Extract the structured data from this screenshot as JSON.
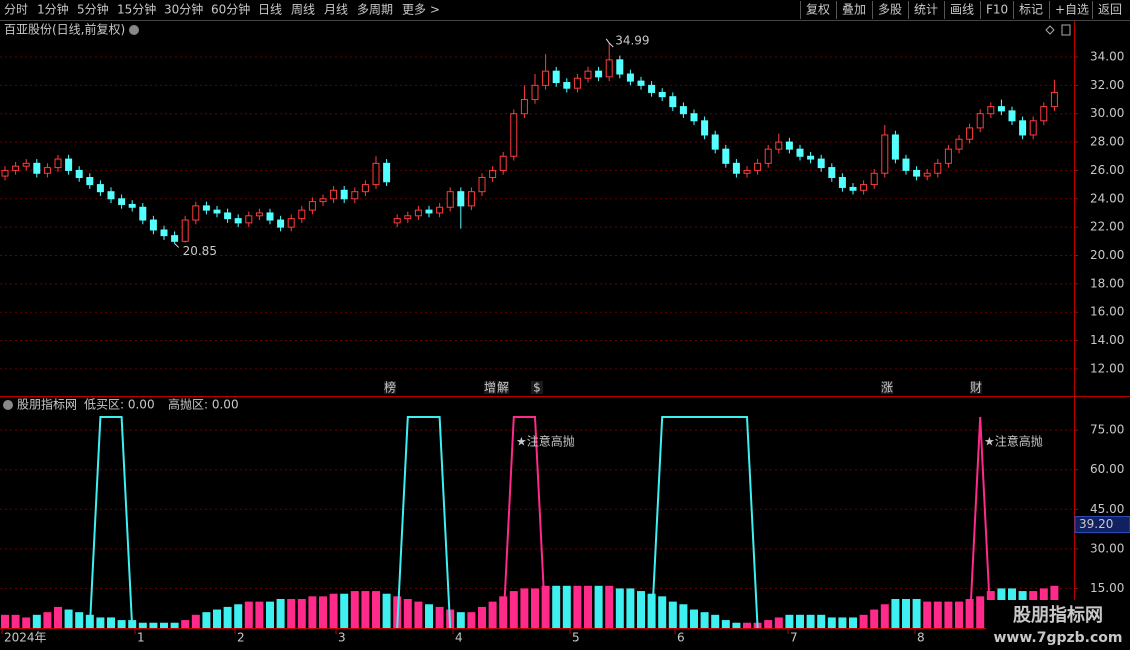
{
  "toolbar": {
    "left": [
      "分时",
      "1分钟",
      "5分钟",
      "15分钟",
      "30分钟",
      "60分钟",
      "日线",
      "周线",
      "月线",
      "多周期",
      "更多 >"
    ],
    "active": 6,
    "right": [
      "复权",
      "叠加",
      "多股",
      "统计",
      "画线",
      "F10",
      "标记",
      "+自选",
      "返回"
    ]
  },
  "chart_data": [
    {
      "type": "candlestick",
      "title": "百亚股份(日线,前复权)",
      "up_color": "#ff3c3c",
      "down_color": "#54ffff",
      "open": [
        25.6,
        26.0,
        26.3,
        26.5,
        25.8,
        26.2,
        26.8,
        26.0,
        25.5,
        25.0,
        24.5,
        24.0,
        23.6,
        23.4,
        22.5,
        21.8,
        21.4,
        21.0,
        22.5,
        23.5,
        23.2,
        23.0,
        22.6,
        22.3,
        22.8,
        23.0,
        22.5,
        22.0,
        22.6,
        23.2,
        23.8,
        24.0,
        24.6,
        24.0,
        24.5,
        25.0,
        26.5,
        22.3,
        22.6,
        22.8,
        23.2,
        23.0,
        23.4,
        24.5,
        23.5,
        24.5,
        25.5,
        26.0,
        27.0,
        30.0,
        31.0,
        32.0,
        33.0,
        32.2,
        31.8,
        32.5,
        33.0,
        32.6,
        33.8,
        32.8,
        32.3,
        32.0,
        31.5,
        31.2,
        30.5,
        30.0,
        29.5,
        28.5,
        27.5,
        26.5,
        25.8,
        26.0,
        26.5,
        27.5,
        28.0,
        27.5,
        27.0,
        26.8,
        26.2,
        25.5,
        24.8,
        24.6,
        25.0,
        25.8,
        28.5,
        26.8,
        26.0,
        25.6,
        25.8,
        26.5,
        27.5,
        28.2,
        29.0,
        30.0,
        30.5,
        30.2,
        29.5,
        28.5,
        29.5,
        30.5
      ],
      "high": [
        26.3,
        26.6,
        26.8,
        26.8,
        26.5,
        27.1,
        27.1,
        26.3,
        25.8,
        25.3,
        24.8,
        24.3,
        23.9,
        23.7,
        22.8,
        22.1,
        21.7,
        22.8,
        23.8,
        23.8,
        23.5,
        23.3,
        22.9,
        23.1,
        23.3,
        23.3,
        22.8,
        22.9,
        23.5,
        24.1,
        24.3,
        24.9,
        24.9,
        24.8,
        25.3,
        27.0,
        26.8,
        22.9,
        23.1,
        23.5,
        23.5,
        23.7,
        24.8,
        24.8,
        24.8,
        25.8,
        26.3,
        27.3,
        30.3,
        32.0,
        32.8,
        34.2,
        33.3,
        32.5,
        32.8,
        33.3,
        33.3,
        34.99,
        34.1,
        33.1,
        32.6,
        32.3,
        31.8,
        31.5,
        30.8,
        30.3,
        29.8,
        28.8,
        27.8,
        26.8,
        26.3,
        26.8,
        27.8,
        28.6,
        28.3,
        27.8,
        27.3,
        27.1,
        26.5,
        25.8,
        25.1,
        25.3,
        26.1,
        29.2,
        28.8,
        27.1,
        26.3,
        26.1,
        26.8,
        27.8,
        28.5,
        29.3,
        30.3,
        30.8,
        31.0,
        30.5,
        29.8,
        29.8,
        30.8,
        32.4
      ],
      "low": [
        25.3,
        25.7,
        26.0,
        25.5,
        25.5,
        25.9,
        25.7,
        25.2,
        24.7,
        24.2,
        23.7,
        23.3,
        23.1,
        22.2,
        21.5,
        21.1,
        20.85,
        20.9,
        22.2,
        22.9,
        22.7,
        22.3,
        22.0,
        22.0,
        22.5,
        22.2,
        21.7,
        21.7,
        22.3,
        22.9,
        23.5,
        23.7,
        23.7,
        23.7,
        24.2,
        24.7,
        24.9,
        22.0,
        22.3,
        22.5,
        22.7,
        22.7,
        23.1,
        21.9,
        23.2,
        24.2,
        25.2,
        25.7,
        26.7,
        29.7,
        30.7,
        31.7,
        31.9,
        31.5,
        31.5,
        32.2,
        32.3,
        32.3,
        32.5,
        32.0,
        31.7,
        31.2,
        30.9,
        30.2,
        29.7,
        29.2,
        28.2,
        27.2,
        26.2,
        25.5,
        25.5,
        25.7,
        26.2,
        27.2,
        27.2,
        26.7,
        26.5,
        25.9,
        25.2,
        24.5,
        24.3,
        24.3,
        24.7,
        25.5,
        26.5,
        25.7,
        25.3,
        25.3,
        25.5,
        26.2,
        27.2,
        27.9,
        28.7,
        29.7,
        29.9,
        29.2,
        28.2,
        28.2,
        29.2,
        30.2
      ],
      "close": [
        26.0,
        26.3,
        26.5,
        25.8,
        26.2,
        26.8,
        26.0,
        25.5,
        25.0,
        24.5,
        24.0,
        23.6,
        23.4,
        22.5,
        21.8,
        21.4,
        21.0,
        22.5,
        23.5,
        23.2,
        23.0,
        22.6,
        22.3,
        22.8,
        23.0,
        22.5,
        22.0,
        22.6,
        23.2,
        23.8,
        24.0,
        24.6,
        24.0,
        24.5,
        25.0,
        26.5,
        25.2,
        22.6,
        22.8,
        23.2,
        23.0,
        23.4,
        24.5,
        23.5,
        24.5,
        25.5,
        26.0,
        27.0,
        30.0,
        31.0,
        32.0,
        33.0,
        32.2,
        31.8,
        32.5,
        33.0,
        32.6,
        33.8,
        32.8,
        32.3,
        32.0,
        31.5,
        31.2,
        30.5,
        30.0,
        29.5,
        28.5,
        27.5,
        26.5,
        25.8,
        26.0,
        26.5,
        27.5,
        28.0,
        27.5,
        27.0,
        26.8,
        26.2,
        25.5,
        24.8,
        24.6,
        25.0,
        25.8,
        28.5,
        26.8,
        26.0,
        25.6,
        25.8,
        26.5,
        27.5,
        28.2,
        29.0,
        30.0,
        30.5,
        30.2,
        29.5,
        28.5,
        29.5,
        30.5,
        31.5
      ],
      "high_label": 34.99,
      "low_label": 20.85,
      "events": [
        "榜",
        "增",
        "解",
        "$",
        "涨",
        "财"
      ],
      "ylim": [
        10.16,
        35.34
      ],
      "yticks": [
        {
          "value": 12,
          "label": "12.00"
        },
        {
          "value": 14,
          "label": "14.00"
        },
        {
          "value": 16,
          "label": "16.00"
        },
        {
          "value": 18,
          "label": "18.00"
        },
        {
          "value": 20,
          "label": "20.00"
        },
        {
          "value": 22,
          "label": "22.00"
        },
        {
          "value": 24,
          "label": "24.00"
        },
        {
          "value": 26,
          "label": "26.00"
        },
        {
          "value": 28,
          "label": "28.00"
        },
        {
          "value": 30,
          "label": "30.00"
        },
        {
          "value": 32,
          "label": "32.00"
        },
        {
          "value": 34,
          "label": "34.00"
        }
      ],
      "grid": true
    },
    {
      "type": "indicator",
      "title": "股朋指标网",
      "series": [
        {
          "name": "低买区: 0.00",
          "color": "#3ff0f0",
          "values": [
            null,
            null,
            null,
            null,
            null,
            null,
            null,
            null,
            0,
            80,
            80,
            80,
            0,
            null,
            null,
            null,
            null,
            null,
            null,
            null,
            null,
            null,
            null,
            null,
            null,
            null,
            null,
            null,
            null,
            null,
            null,
            null,
            null,
            null,
            null,
            null,
            null,
            0,
            80,
            80,
            80,
            80,
            0,
            null,
            null,
            null,
            null,
            null,
            null,
            null,
            null,
            null,
            null,
            null,
            null,
            null,
            null,
            null,
            null,
            null,
            null,
            0,
            80,
            80,
            80,
            80,
            80,
            80,
            80,
            80,
            80,
            0,
            null,
            null,
            null,
            null,
            null,
            null,
            null,
            null,
            null,
            null,
            null,
            null,
            null,
            null,
            null,
            null,
            null,
            null,
            null,
            null,
            null,
            null,
            null,
            null,
            null,
            null,
            null,
            null
          ]
        },
        {
          "name": "高抛区: 0.00",
          "color": "#ff2a8a",
          "values": [
            null,
            null,
            null,
            null,
            null,
            null,
            null,
            null,
            null,
            null,
            null,
            null,
            null,
            null,
            null,
            null,
            null,
            null,
            null,
            null,
            null,
            null,
            null,
            null,
            null,
            null,
            null,
            null,
            null,
            null,
            null,
            null,
            null,
            null,
            null,
            null,
            null,
            null,
            null,
            null,
            null,
            null,
            null,
            null,
            null,
            null,
            null,
            0,
            80,
            80,
            80,
            0,
            null,
            null,
            null,
            null,
            null,
            null,
            null,
            null,
            null,
            null,
            null,
            null,
            null,
            null,
            null,
            null,
            null,
            null,
            null,
            null,
            null,
            null,
            null,
            null,
            null,
            null,
            null,
            null,
            null,
            null,
            null,
            null,
            null,
            null,
            null,
            null,
            null,
            null,
            null,
            0,
            80,
            0,
            null,
            null,
            null,
            null,
            null,
            null
          ]
        }
      ],
      "bars": [
        5,
        5,
        4,
        5,
        6,
        8,
        7,
        6,
        5,
        4,
        4,
        3,
        3,
        2,
        2,
        2,
        2,
        3,
        5,
        6,
        7,
        8,
        9,
        10,
        10,
        10,
        11,
        11,
        11,
        12,
        12,
        13,
        13,
        14,
        14,
        14,
        13,
        12,
        11,
        10,
        9,
        8,
        7,
        6,
        6,
        8,
        10,
        12,
        14,
        15,
        15,
        16,
        16,
        16,
        16,
        16,
        16,
        16,
        15,
        15,
        14,
        13,
        12,
        10,
        9,
        7,
        6,
        5,
        3,
        2,
        2,
        2,
        3,
        4,
        5,
        5,
        5,
        5,
        4,
        4,
        4,
        5,
        7,
        9,
        11,
        11,
        11,
        10,
        10,
        10,
        10,
        11,
        12,
        14,
        15,
        15,
        14,
        14,
        15,
        16
      ],
      "bar_up_color": "#ff2a8a",
      "bar_down_color": "#3ff0f0",
      "notes": [
        "★注意高抛",
        "★注意高抛"
      ],
      "current_value": {
        "value": 39.2,
        "label": "39.20"
      },
      "x_axis_labels": [
        "2024年",
        "1",
        "2",
        "3",
        "4",
        "5",
        "6",
        "7",
        "8"
      ],
      "ylim": [
        0,
        81.5
      ],
      "yticks": [
        {
          "value": 15,
          "label": "15.00"
        },
        {
          "value": 30,
          "label": "30.00"
        },
        {
          "value": 45,
          "label": "45.00"
        },
        {
          "value": 60,
          "label": "60.00"
        },
        {
          "value": 75,
          "label": "75.00"
        }
      ],
      "grid": true
    }
  ],
  "watermark": {
    "title": "股朋指标网",
    "url": "www.7gpzb.com"
  }
}
